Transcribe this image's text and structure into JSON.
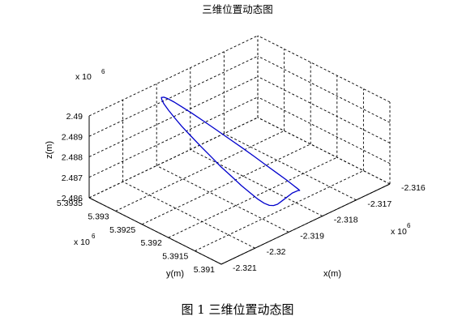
{
  "chart_data": {
    "type": "line3d",
    "title": "三维位置动态图",
    "xlabel": "x(m)",
    "ylabel": "y(m)",
    "zlabel": "z(m)",
    "x_scale_label": "x 10",
    "x_scale_exp": "6",
    "y_scale_label": "x 10",
    "y_scale_exp": "6",
    "z_scale_label": "x 10",
    "z_scale_exp": "6",
    "x_ticks": [
      "-2.321",
      "-2.32",
      "-2.319",
      "-2.318",
      "-2.317",
      "-2.316"
    ],
    "y_ticks": [
      "5.3935",
      "5.393",
      "5.3925",
      "5.392",
      "5.3915",
      "5.391"
    ],
    "z_ticks": [
      "2.486",
      "2.487",
      "2.488",
      "2.489",
      "2.49"
    ],
    "xlim": [
      -2.321,
      -2.316
    ],
    "ylim": [
      5.391,
      5.3935
    ],
    "zlim": [
      2.486,
      2.49
    ],
    "units_multiplier": 1000000,
    "grid": true,
    "series": [
      {
        "line_color": "#0000cc",
        "shape": "closed loop (ellipse)",
        "x_center": -2.3185,
        "y_center": 5.39225,
        "z_center": 2.48775,
        "x_values": [
          -2.31775,
          -2.31764,
          -2.31756,
          -2.31751,
          -2.31749,
          -2.31751,
          -2.31756,
          -2.31764,
          -2.31775,
          -2.31789,
          -2.31805,
          -2.31823,
          -2.31842,
          -2.31862,
          -2.31882,
          -2.31902,
          -2.31921,
          -2.31939,
          -2.31955,
          -2.31969,
          -2.31981,
          -2.3199,
          -2.31996,
          -2.31998,
          -2.31997,
          -2.31993,
          -2.31986,
          -2.31975,
          -2.31962,
          -2.31946,
          -2.31929,
          -2.3191,
          -2.3189,
          -2.3187,
          -2.3185,
          -2.3183,
          -2.3181,
          -2.31792,
          -2.31775
        ],
        "y_values": [
          5.39161,
          5.39166,
          5.39175,
          5.39187,
          5.39201,
          5.39217,
          5.39234,
          5.39251,
          5.39268,
          5.39284,
          5.39298,
          5.3931,
          5.39319,
          5.39325,
          5.39328,
          5.39327,
          5.39323,
          5.39316,
          5.39305,
          5.39292,
          5.39276,
          5.39259,
          5.39241,
          5.39223,
          5.39205,
          5.39188,
          5.39173,
          5.3916,
          5.3915,
          5.39143,
          5.3914,
          5.3914,
          5.39143,
          5.39148,
          5.39153,
          5.39158,
          5.39161,
          5.39162,
          5.39161
        ],
        "z_values": [
          2.48627,
          2.48611,
          2.48602,
          2.486,
          2.48606,
          2.48619,
          2.48639,
          2.48665,
          2.48696,
          2.48731,
          2.48769,
          2.48809,
          2.48849,
          2.48888,
          2.48925,
          2.48958,
          2.48986,
          2.49008,
          2.49023,
          2.49031,
          2.49031,
          2.49024,
          2.49009,
          2.48988,
          2.4896,
          2.48928,
          2.48891,
          2.48852,
          2.48811,
          2.48771,
          2.48732,
          2.48697,
          2.48667,
          2.48644,
          2.48628,
          2.48621,
          2.48621,
          2.48626,
          2.48627
        ]
      }
    ]
  },
  "caption": "图 1  三维位置动态图"
}
